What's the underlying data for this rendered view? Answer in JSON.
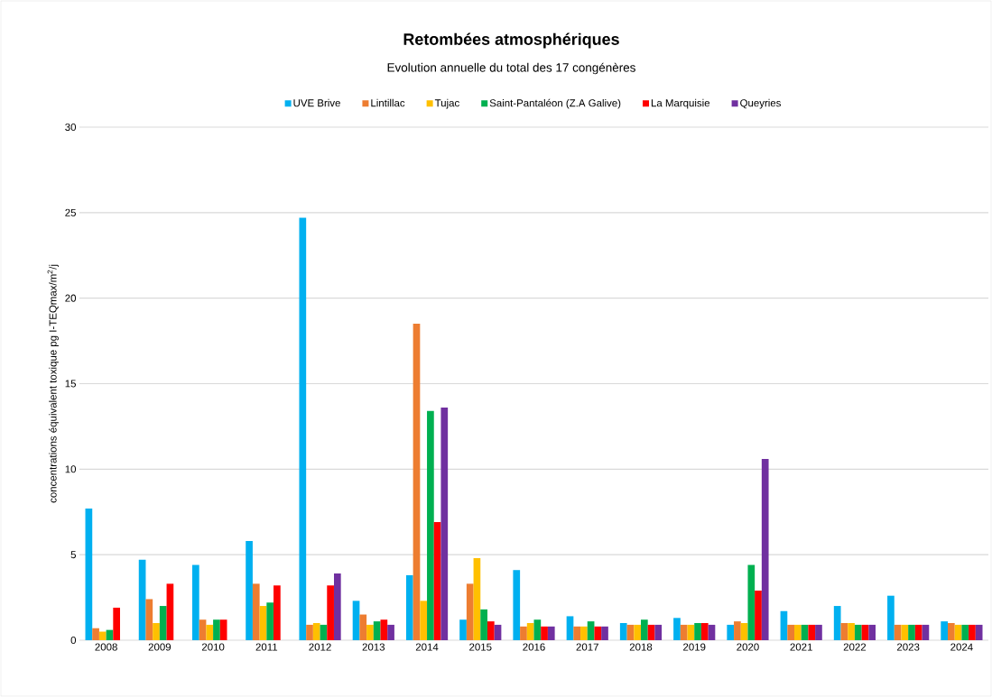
{
  "chart_data": {
    "type": "bar",
    "title": "Retombées atmosphériques",
    "subtitle": "Evolution annuelle du total des 17 congénères",
    "ylabel": "concentrations équivalent toxique pg I-TEQmax/m$^{2}$/j",
    "categories": [
      "2008",
      "2009",
      "2010",
      "2011",
      "2012",
      "2013",
      "2014",
      "2015",
      "2016",
      "2017",
      "2018",
      "2019",
      "2020",
      "2021",
      "2022",
      "2023",
      "2024"
    ],
    "series": [
      {
        "name": "UVE Brive",
        "color": "#00b0f0",
        "values": [
          7.7,
          4.7,
          4.4,
          5.8,
          24.7,
          2.3,
          3.8,
          1.2,
          4.1,
          1.4,
          1.0,
          1.3,
          0.9,
          1.7,
          2.0,
          2.6,
          1.1
        ]
      },
      {
        "name": "Lintillac",
        "color": "#ed7d31",
        "values": [
          0.7,
          2.4,
          1.2,
          3.3,
          0.9,
          1.5,
          18.5,
          3.3,
          0.8,
          0.8,
          0.9,
          0.9,
          1.1,
          0.9,
          1.0,
          0.9,
          1.0
        ]
      },
      {
        "name": "Tujac",
        "color": "#ffc000",
        "values": [
          0.5,
          1.0,
          0.9,
          2.0,
          1.0,
          0.9,
          2.3,
          4.8,
          1.0,
          0.8,
          0.9,
          0.9,
          1.0,
          0.9,
          1.0,
          0.9,
          0.9
        ]
      },
      {
        "name": "Saint-Pantaléon (Z.A Galive)",
        "color": "#00b050",
        "values": [
          0.6,
          2.0,
          1.2,
          2.2,
          0.9,
          1.1,
          13.4,
          1.8,
          1.2,
          1.1,
          1.2,
          1.0,
          4.4,
          0.9,
          0.9,
          0.9,
          0.9
        ]
      },
      {
        "name": "La Marquisie",
        "color": "#ff0000",
        "values": [
          1.9,
          3.3,
          1.2,
          3.2,
          3.2,
          1.2,
          6.9,
          1.1,
          0.8,
          0.8,
          0.9,
          1.0,
          2.9,
          0.9,
          0.9,
          0.9,
          0.9
        ]
      },
      {
        "name": "Queyries",
        "color": "#7030a0",
        "values": [
          null,
          null,
          null,
          null,
          3.9,
          0.9,
          13.6,
          0.9,
          0.8,
          0.8,
          0.9,
          0.9,
          10.6,
          0.9,
          0.9,
          0.9,
          0.9
        ]
      }
    ],
    "ylim": [
      0,
      30
    ],
    "yticks": [
      0,
      5,
      10,
      15,
      20,
      25,
      30
    ],
    "grid": "y",
    "legend": "top"
  }
}
